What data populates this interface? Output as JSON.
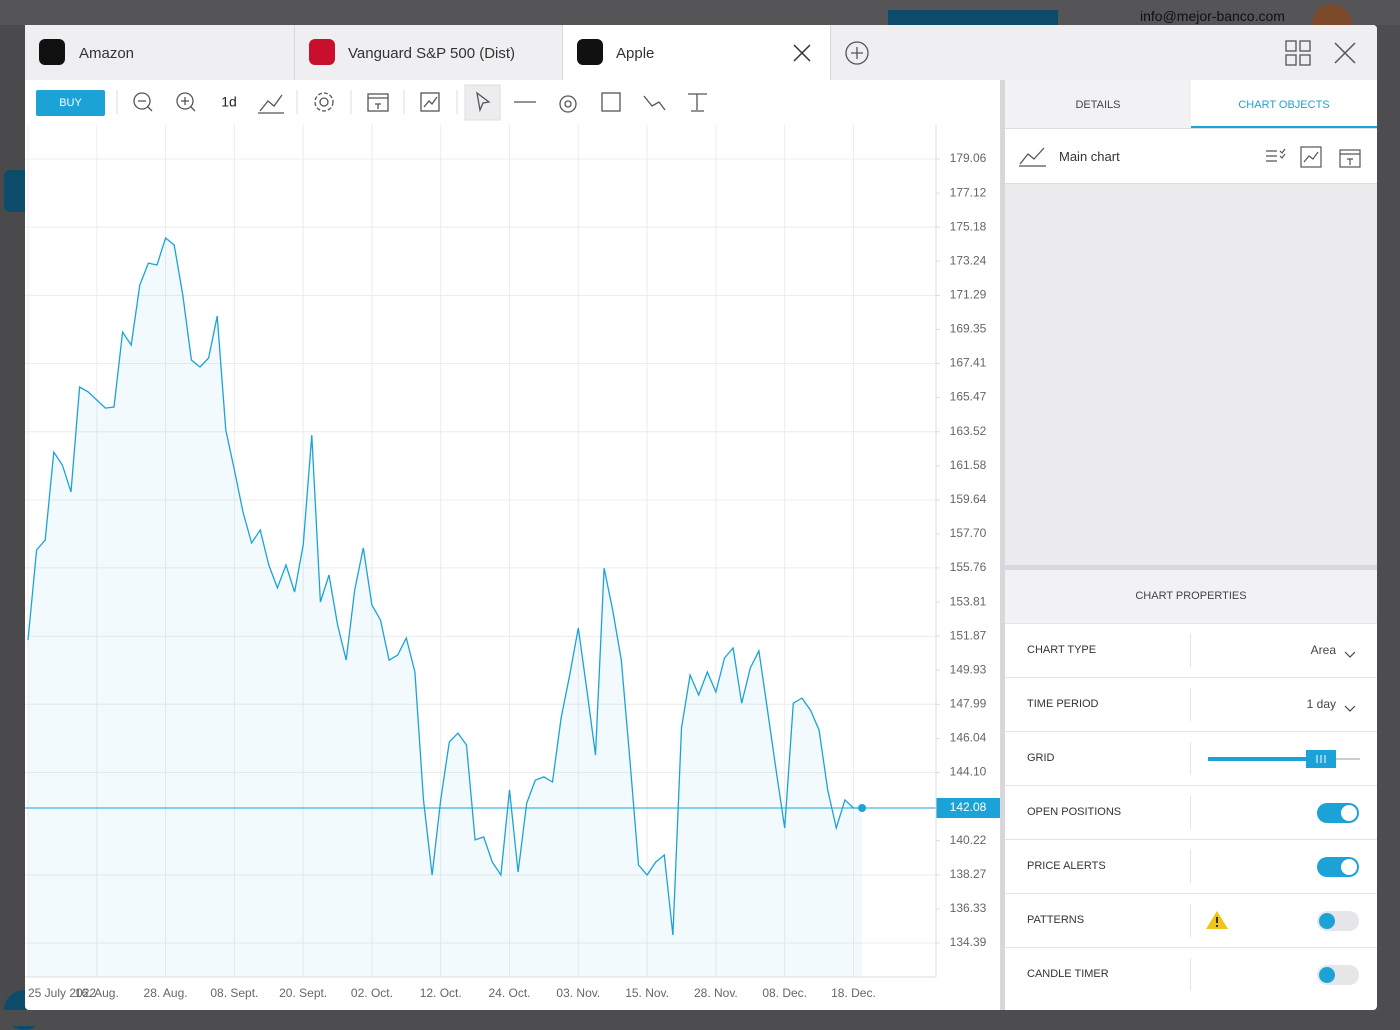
{
  "header": {
    "email": "info@mejor-banco.com"
  },
  "tabs": [
    "Amazon",
    "Vanguard S&P 500 (Dist)",
    "Apple"
  ],
  "toolbar": {
    "buy": "BUY",
    "period": "1d"
  },
  "chart_data": {
    "type": "area",
    "color": "#1ba3d8",
    "grid": true,
    "values": [
      151.65,
      156.78,
      157.35,
      162.36,
      161.62,
      160.09,
      166.07,
      165.79,
      165.33,
      164.87,
      164.93,
      169.2,
      168.46,
      171.88,
      173.13,
      173.02,
      174.56,
      174.16,
      171.31,
      167.61,
      167.21,
      167.72,
      170.11,
      163.62,
      161.34,
      158.95,
      157.18,
      157.92,
      155.93,
      154.62,
      155.93,
      154.39,
      157.07,
      163.33,
      153.82,
      155.36,
      152.51,
      150.51,
      154.5,
      156.9,
      153.65,
      152.79,
      150.51,
      150.8,
      151.77,
      149.83,
      142.54,
      138.26,
      142.54,
      145.84,
      146.35,
      145.67,
      140.26,
      140.43,
      139.0,
      138.26,
      143.11,
      138.43,
      142.36,
      143.67,
      143.85,
      143.56,
      147.21,
      149.66,
      152.34,
      148.8,
      145.1,
      155.75,
      153.36,
      150.51,
      144.82,
      138.83,
      138.26,
      139.0,
      139.4,
      134.84,
      146.64,
      149.66,
      148.52,
      149.83,
      148.69,
      150.63,
      151.2,
      148.05,
      150.06,
      151.03,
      147.66,
      144.24,
      140.94,
      148.05,
      148.34,
      147.66,
      146.52,
      143.11,
      140.94,
      142.54,
      142.08,
      142.08
    ],
    "last_value": 142.08,
    "xlim": [
      -0.35,
      105.6
    ],
    "xticks": [
      {
        "value": 0,
        "label": "25 July 2022"
      },
      {
        "value": 8,
        "label": "16. Aug."
      },
      {
        "value": 16,
        "label": "28. Aug."
      },
      {
        "value": 24,
        "label": "08. Sept."
      },
      {
        "value": 32,
        "label": "20. Sept."
      },
      {
        "value": 40,
        "label": "02. Oct."
      },
      {
        "value": 48,
        "label": "12. Oct."
      },
      {
        "value": 56,
        "label": "24. Oct."
      },
      {
        "value": 64,
        "label": "03. Nov."
      },
      {
        "value": 72,
        "label": "15. Nov."
      },
      {
        "value": 80,
        "label": "28. Nov."
      },
      {
        "value": 88,
        "label": "08. Dec."
      },
      {
        "value": 96,
        "label": "18. Dec."
      }
    ],
    "ylim": [
      132.45,
      181.0
    ],
    "yticks": [
      179.06,
      177.12,
      175.18,
      173.24,
      171.29,
      169.35,
      167.41,
      165.47,
      163.52,
      161.58,
      159.64,
      {
        "value": 157.7,
        "label": "157.70"
      },
      155.76,
      153.81,
      151.87,
      149.93,
      147.99,
      146.04,
      {
        "value": 144.1,
        "label": "144.10"
      },
      140.22,
      138.27,
      136.33,
      134.39
    ]
  },
  "side_panel": {
    "tabs": [
      "DETAILS",
      "CHART OBJECTS"
    ],
    "object": "Main chart",
    "properties_title": "CHART PROPERTIES",
    "properties": [
      {
        "label": "CHART TYPE",
        "value": "Area"
      },
      {
        "label": "TIME PERIOD",
        "value": "1 day"
      },
      {
        "label": "GRID",
        "slider": true
      },
      {
        "label": "OPEN POSITIONS",
        "on": true
      },
      {
        "label": "PRICE ALERTS",
        "on": true
      },
      {
        "label": "PATTERNS",
        "on": false,
        "warning": true
      },
      {
        "label": "CANDLE TIMER",
        "on": false
      }
    ]
  }
}
